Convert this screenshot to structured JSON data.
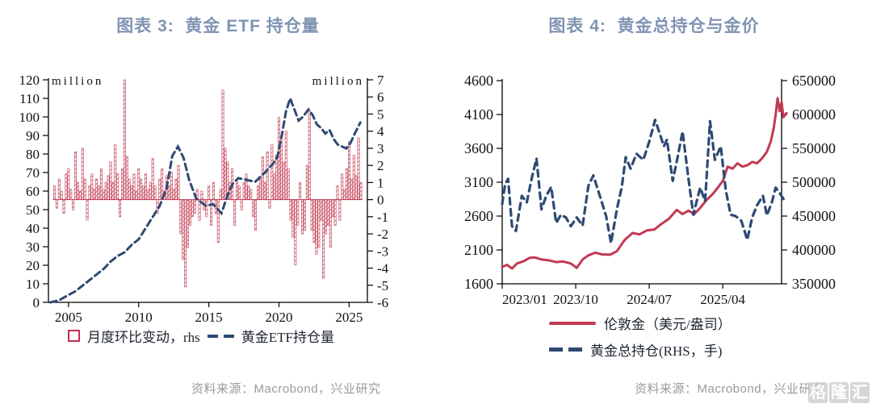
{
  "colors": {
    "red": "#c23a52",
    "navy": "#2e4a73",
    "title": "#8094b3",
    "axis_text": "#111111",
    "source": "#9a9a9a",
    "watermark": "#c9c9c9"
  },
  "left_panel": {
    "title": "图表 3:  黄金 ETF 持仓量",
    "legend": [
      {
        "label": "月度环比变动，rhs",
        "marker": "open-square"
      },
      {
        "label": "黄金ETF持仓量",
        "marker": "dashed-line"
      }
    ],
    "source": "资料来源：Macrobond，兴业研究"
  },
  "right_panel": {
    "title": "图表 4:  黄金总持仓与金价",
    "legend": [
      {
        "label": "伦敦金（美元/盎司）",
        "marker": "solid-line"
      },
      {
        "label": "黄金总持仓(RHS，手)",
        "marker": "dashed-line"
      }
    ],
    "source": "资料来源：Macrobond，兴业研究"
  },
  "watermark": {
    "chars": [
      "格",
      "隆",
      "汇"
    ]
  },
  "chart_data": [
    {
      "type": "bar",
      "title": "黄金 ETF 持仓量",
      "left_axis": {
        "label": "million",
        "min": 0,
        "max": 120,
        "step": 10
      },
      "right_axis": {
        "label": "million",
        "min": -6,
        "max": 7,
        "step": 1
      },
      "x_axis": {
        "min": 2003.57,
        "max": 2026.3,
        "ticks": [
          2005,
          2010,
          2015,
          2020,
          2025
        ]
      },
      "bars": {
        "name": "月度环比变动，rhs",
        "axis": "right",
        "start_year": 2004.0,
        "step_years": 0.1667,
        "values": [
          0.8,
          -0.5,
          1.2,
          0.5,
          -0.8,
          1.5,
          1.8,
          0.6,
          -0.6,
          2.8,
          1.0,
          0.5,
          3.0,
          1.2,
          -1.2,
          0.8,
          1.5,
          0.6,
          1.2,
          0.8,
          1.8,
          0.6,
          1.0,
          1.4,
          2.2,
          1.0,
          3.2,
          1.5,
          -1.0,
          1.8,
          7.0,
          2.5,
          1.2,
          0.8,
          1.5,
          0.5,
          1.8,
          1.2,
          0.8,
          1.5,
          0.6,
          1.0,
          2.4,
          0.8,
          -0.8,
          1.2,
          1.8,
          0.5,
          1.4,
          0.8,
          1.6,
          0.6,
          1.2,
          2.0,
          -2.0,
          -3.5,
          -5.1,
          -2.8,
          -1.5,
          -1.0,
          -0.8,
          0.6,
          -1.2,
          0.5,
          -0.6,
          -1.0,
          0.8,
          -1.5,
          1.0,
          -0.8,
          -2.5,
          0.6,
          6.4,
          3.0,
          2.2,
          1.0,
          1.8,
          -1.5,
          1.2,
          0.8,
          -0.6,
          1.0,
          1.5,
          0.8,
          0.6,
          -1.0,
          -1.8,
          0.8,
          1.2,
          2.5,
          1.0,
          2.8,
          -0.5,
          3.2,
          1.5,
          2.6,
          4.8,
          3.5,
          2.2,
          4.0,
          1.8,
          -1.2,
          -2.2,
          -3.8,
          -1.5,
          1.0,
          -2.0,
          -1.8,
          2.0,
          5.2,
          -1.8,
          -2.5,
          -3.2,
          -2.8,
          -1.2,
          -4.6,
          -2.0,
          -1.5,
          -2.8,
          -1.0,
          -1.5,
          0.8,
          -1.2,
          1.5,
          0.6,
          1.8,
          3.4,
          1.2,
          2.6,
          1.4,
          3.6,
          1.0
        ]
      },
      "line": {
        "name": "黄金ETF持仓量",
        "axis": "left",
        "style": "dashed",
        "points": [
          [
            2003.7,
            0
          ],
          [
            2004.3,
            1
          ],
          [
            2005,
            4
          ],
          [
            2005.5,
            6
          ],
          [
            2006,
            9
          ],
          [
            2006.5,
            12
          ],
          [
            2007,
            15
          ],
          [
            2007.5,
            18
          ],
          [
            2008,
            22
          ],
          [
            2008.5,
            25
          ],
          [
            2009,
            27
          ],
          [
            2009.5,
            31
          ],
          [
            2010,
            34
          ],
          [
            2010.5,
            40
          ],
          [
            2011,
            46
          ],
          [
            2011.5,
            52
          ],
          [
            2012,
            62
          ],
          [
            2012.4,
            79
          ],
          [
            2012.8,
            84
          ],
          [
            2013.2,
            78
          ],
          [
            2013.6,
            66
          ],
          [
            2014.1,
            56
          ],
          [
            2014.8,
            52
          ],
          [
            2015.3,
            53
          ],
          [
            2015.9,
            48
          ],
          [
            2016.3,
            57
          ],
          [
            2016.7,
            64
          ],
          [
            2017.1,
            67
          ],
          [
            2017.7,
            66
          ],
          [
            2018.3,
            65
          ],
          [
            2019,
            70
          ],
          [
            2019.6,
            75
          ],
          [
            2019.9,
            79
          ],
          [
            2020.2,
            90
          ],
          [
            2020.5,
            103
          ],
          [
            2020.8,
            110
          ],
          [
            2021.1,
            104
          ],
          [
            2021.4,
            98
          ],
          [
            2021.7,
            100
          ],
          [
            2022.1,
            104
          ],
          [
            2022.4,
            101
          ],
          [
            2022.7,
            96
          ],
          [
            2023,
            94
          ],
          [
            2023.3,
            91
          ],
          [
            2023.6,
            93
          ],
          [
            2023.9,
            88
          ],
          [
            2024.2,
            85
          ],
          [
            2024.5,
            84
          ],
          [
            2024.8,
            83
          ],
          [
            2025.1,
            86
          ],
          [
            2025.4,
            91
          ],
          [
            2025.8,
            97
          ]
        ]
      }
    },
    {
      "type": "line",
      "title": "黄金总持仓与金价",
      "left_axis": {
        "label": "",
        "min": 1600,
        "max": 4600,
        "step": 500
      },
      "right_axis": {
        "label": "",
        "min": 350000,
        "max": 650000,
        "step": 50000
      },
      "x_axis": {
        "min": 2023.0,
        "max": 2025.85,
        "tick_years": [
          2023.0,
          2023.75,
          2024.5,
          2025.25
        ],
        "tick_labels": [
          "2023/01",
          "2023/10",
          "2024/07",
          "2025/04"
        ]
      },
      "series": [
        {
          "name": "伦敦金（美元/盎司）",
          "axis": "left",
          "style": "solid",
          "color": "red",
          "points": [
            [
              2023.0,
              1850
            ],
            [
              2023.05,
              1880
            ],
            [
              2023.1,
              1825
            ],
            [
              2023.15,
              1900
            ],
            [
              2023.22,
              1935
            ],
            [
              2023.28,
              1985
            ],
            [
              2023.33,
              1990
            ],
            [
              2023.4,
              1960
            ],
            [
              2023.48,
              1945
            ],
            [
              2023.55,
              1920
            ],
            [
              2023.62,
              1930
            ],
            [
              2023.7,
              1900
            ],
            [
              2023.76,
              1835
            ],
            [
              2023.82,
              1960
            ],
            [
              2023.88,
              2020
            ],
            [
              2023.95,
              2060
            ],
            [
              2024.02,
              2035
            ],
            [
              2024.1,
              2030
            ],
            [
              2024.17,
              2080
            ],
            [
              2024.25,
              2250
            ],
            [
              2024.33,
              2350
            ],
            [
              2024.4,
              2330
            ],
            [
              2024.48,
              2390
            ],
            [
              2024.55,
              2400
            ],
            [
              2024.62,
              2480
            ],
            [
              2024.7,
              2560
            ],
            [
              2024.78,
              2690
            ],
            [
              2024.84,
              2630
            ],
            [
              2024.9,
              2680
            ],
            [
              2024.96,
              2630
            ],
            [
              2025.02,
              2720
            ],
            [
              2025.08,
              2830
            ],
            [
              2025.15,
              2930
            ],
            [
              2025.2,
              3020
            ],
            [
              2025.25,
              3120
            ],
            [
              2025.3,
              3330
            ],
            [
              2025.35,
              3300
            ],
            [
              2025.4,
              3380
            ],
            [
              2025.45,
              3330
            ],
            [
              2025.5,
              3350
            ],
            [
              2025.55,
              3400
            ],
            [
              2025.6,
              3380
            ],
            [
              2025.65,
              3450
            ],
            [
              2025.7,
              3550
            ],
            [
              2025.74,
              3700
            ],
            [
              2025.77,
              3900
            ],
            [
              2025.79,
              4100
            ],
            [
              2025.81,
              4340
            ],
            [
              2025.83,
              4150
            ],
            [
              2025.85,
              4280
            ],
            [
              2025.87,
              4060
            ],
            [
              2025.9,
              4120
            ]
          ]
        },
        {
          "name": "黄金总持仓(RHS，手)",
          "axis": "right",
          "style": "dashed",
          "color": "navy",
          "points": [
            [
              2023.0,
              468000
            ],
            [
              2023.03,
              497000
            ],
            [
              2023.06,
              505000
            ],
            [
              2023.1,
              435000
            ],
            [
              2023.14,
              428000
            ],
            [
              2023.2,
              480000
            ],
            [
              2023.25,
              470000
            ],
            [
              2023.3,
              505000
            ],
            [
              2023.35,
              535000
            ],
            [
              2023.4,
              460000
            ],
            [
              2023.45,
              480000
            ],
            [
              2023.5,
              493000
            ],
            [
              2023.55,
              440000
            ],
            [
              2023.6,
              452000
            ],
            [
              2023.65,
              448000
            ],
            [
              2023.7,
              435000
            ],
            [
              2023.76,
              448000
            ],
            [
              2023.82,
              436000
            ],
            [
              2023.88,
              495000
            ],
            [
              2023.93,
              510000
            ],
            [
              2024.0,
              478000
            ],
            [
              2024.06,
              450000
            ],
            [
              2024.11,
              410000
            ],
            [
              2024.17,
              460000
            ],
            [
              2024.22,
              493000
            ],
            [
              2024.26,
              537000
            ],
            [
              2024.31,
              520000
            ],
            [
              2024.37,
              542000
            ],
            [
              2024.44,
              533000
            ],
            [
              2024.5,
              560000
            ],
            [
              2024.56,
              592000
            ],
            [
              2024.6,
              575000
            ],
            [
              2024.65,
              553000
            ],
            [
              2024.68,
              563000
            ],
            [
              2024.74,
              502000
            ],
            [
              2024.79,
              537000
            ],
            [
              2024.84,
              575000
            ],
            [
              2024.9,
              505000
            ],
            [
              2024.95,
              452000
            ],
            [
              2025.02,
              492000
            ],
            [
              2025.07,
              472000
            ],
            [
              2025.12,
              590000
            ],
            [
              2025.17,
              533000
            ],
            [
              2025.23,
              553000
            ],
            [
              2025.28,
              489000
            ],
            [
              2025.33,
              452000
            ],
            [
              2025.38,
              450000
            ],
            [
              2025.44,
              443000
            ],
            [
              2025.5,
              415000
            ],
            [
              2025.55,
              448000
            ],
            [
              2025.6,
              466000
            ],
            [
              2025.66,
              480000
            ],
            [
              2025.7,
              451000
            ],
            [
              2025.75,
              470000
            ],
            [
              2025.79,
              492000
            ],
            [
              2025.83,
              484000
            ],
            [
              2025.88,
              473000
            ]
          ]
        }
      ]
    }
  ]
}
